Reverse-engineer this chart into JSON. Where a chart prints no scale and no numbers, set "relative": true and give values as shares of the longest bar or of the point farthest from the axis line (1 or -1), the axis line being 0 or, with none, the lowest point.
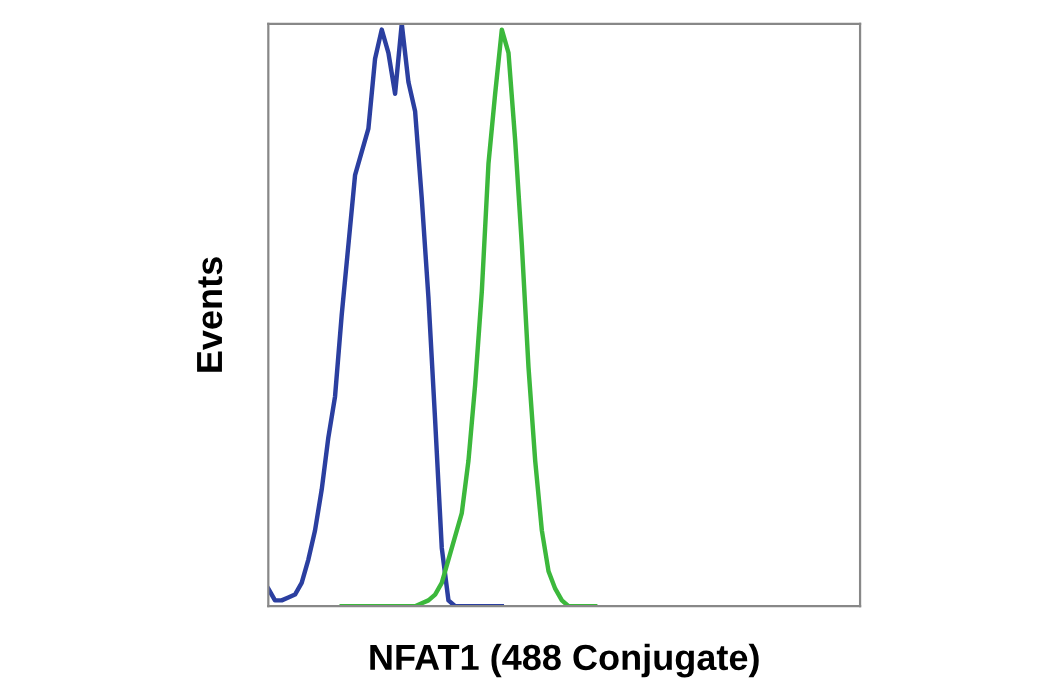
{
  "chart_data": {
    "type": "line",
    "relative": true,
    "xlabel": "NFAT1 (488 Conjugate)",
    "ylabel": "Events",
    "grid": false,
    "marker": "none",
    "line_style": "solid",
    "categories": [
      null,
      null,
      null,
      null,
      null,
      null,
      null,
      null,
      null,
      null,
      null,
      null,
      null,
      null,
      null,
      null,
      null,
      null,
      null,
      null,
      null,
      null,
      null,
      null,
      null,
      null,
      null,
      null,
      null,
      null,
      null,
      null,
      null,
      null,
      null,
      null,
      null,
      null,
      null,
      null,
      null,
      null,
      null,
      null,
      null,
      null,
      null,
      null,
      null,
      null,
      null,
      null,
      null,
      null,
      null,
      null,
      null,
      null,
      null,
      null,
      null,
      null,
      null,
      null,
      null,
      null,
      null,
      null,
      null,
      null,
      null,
      null,
      null,
      null,
      null,
      null,
      null,
      null,
      null,
      null,
      null,
      null,
      null,
      null,
      null,
      null,
      null,
      null,
      null
    ],
    "series": [
      {
        "color": "#2b3fa0",
        "values": [
          0.03,
          0.01,
          0.01,
          0.015,
          0.02,
          0.04,
          0.08,
          0.13,
          0.2,
          0.29,
          0.36,
          0.5,
          0.62,
          0.74,
          0.78,
          0.82,
          0.94,
          0.99,
          0.95,
          0.88,
          1.0,
          0.9,
          0.85,
          0.7,
          0.53,
          0.32,
          0.1,
          0.01,
          0,
          0,
          0,
          0,
          0,
          0,
          0,
          0,
          null,
          null,
          null,
          null,
          null,
          null,
          null,
          null,
          null,
          null,
          null,
          null,
          null,
          null,
          null,
          null,
          null,
          null,
          null,
          null,
          null,
          null,
          null,
          null,
          null,
          null,
          null,
          null,
          null,
          null,
          null,
          null,
          null,
          null,
          null,
          null,
          null,
          null,
          null,
          null,
          null,
          null,
          null,
          null,
          null,
          null,
          null,
          null,
          null,
          null,
          null,
          null,
          null
        ]
      },
      {
        "color": "#3cb83c",
        "values": [
          null,
          null,
          null,
          null,
          null,
          null,
          null,
          null,
          null,
          null,
          null,
          0,
          0,
          0,
          0,
          0,
          0,
          0,
          0,
          0,
          0,
          0,
          0,
          0.005,
          0.01,
          0.02,
          0.04,
          0.08,
          0.12,
          0.16,
          0.25,
          0.38,
          0.54,
          0.76,
          0.88,
          0.99,
          0.95,
          0.8,
          0.62,
          0.41,
          0.25,
          0.13,
          0.06,
          0.03,
          0.01,
          0,
          0,
          0,
          0,
          0,
          null,
          null,
          null,
          null,
          null,
          null,
          null,
          null,
          null,
          null,
          null,
          null,
          null,
          null,
          null,
          null,
          null,
          null,
          null,
          null,
          null,
          null,
          null,
          null,
          null,
          null,
          null,
          null,
          null,
          null,
          null,
          null,
          null,
          null,
          null,
          null,
          null,
          null,
          null
        ]
      }
    ]
  }
}
